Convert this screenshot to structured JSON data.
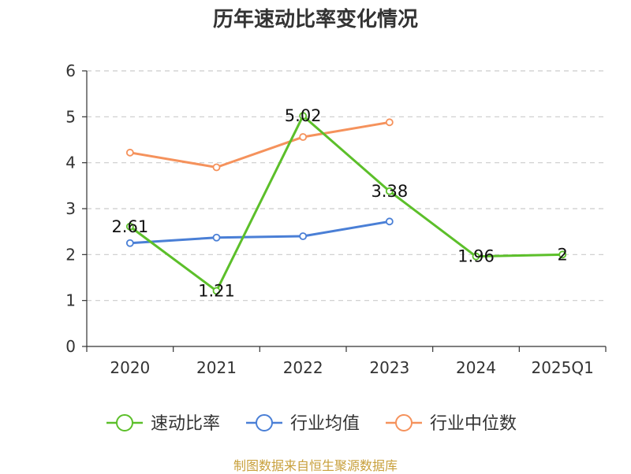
{
  "chart_data": {
    "type": "line",
    "title": "历年速动比率变化情况",
    "categories": [
      "2020",
      "2021",
      "2022",
      "2023",
      "2024",
      "2025Q1"
    ],
    "ylim": [
      0,
      6
    ],
    "yticks": [
      0,
      1,
      2,
      3,
      4,
      5,
      6
    ],
    "grid": true,
    "legend_position": "bottom",
    "series": [
      {
        "name": "速动比率",
        "color": "#5cbf2a",
        "values": [
          2.61,
          1.21,
          5.02,
          3.38,
          1.96,
          2
        ],
        "labels": [
          "2.61",
          "1.21",
          "5.02",
          "3.38",
          "1.96",
          "2"
        ]
      },
      {
        "name": "行业均值",
        "color": "#4a7fd6",
        "values": [
          2.25,
          2.37,
          2.4,
          2.72,
          null,
          null
        ]
      },
      {
        "name": "行业中位数",
        "color": "#f5925c",
        "values": [
          4.22,
          3.9,
          4.56,
          4.88,
          null,
          null
        ]
      }
    ]
  },
  "source": "制图数据来自恒生聚源数据库"
}
